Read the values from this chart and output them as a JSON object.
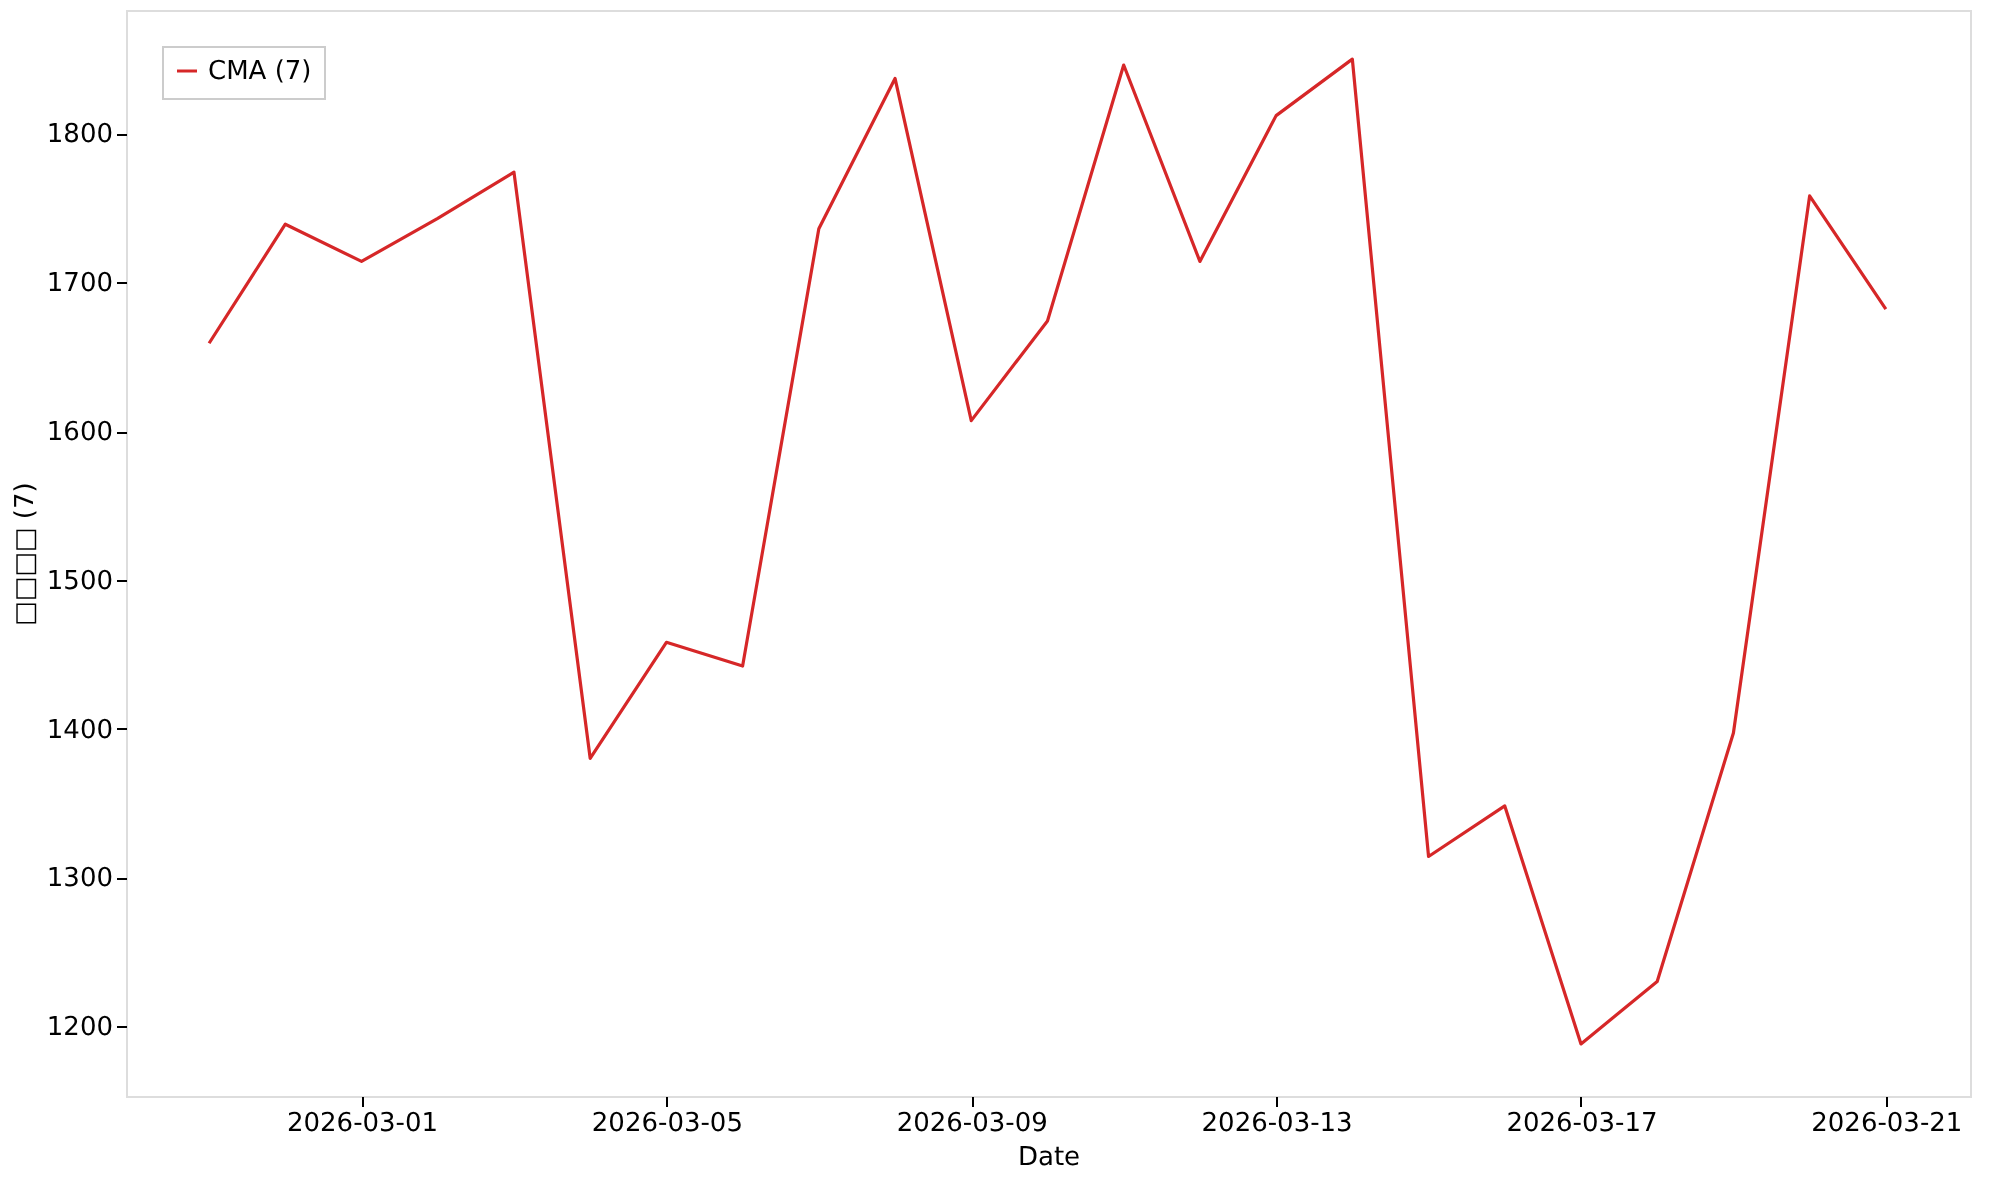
{
  "chart_data": {
    "type": "line",
    "xlabel": "Date",
    "ylabel": "□□□□ (7)",
    "x": [
      "2026-02-27",
      "2026-02-28",
      "2026-03-01",
      "2026-03-02",
      "2026-03-03",
      "2026-03-04",
      "2026-03-05",
      "2026-03-06",
      "2026-03-07",
      "2026-03-08",
      "2026-03-09",
      "2026-03-10",
      "2026-03-11",
      "2026-03-12",
      "2026-03-13",
      "2026-03-14",
      "2026-03-15",
      "2026-03-16",
      "2026-03-17",
      "2026-03-18",
      "2026-03-19",
      "2026-03-20",
      "2026-03-21"
    ],
    "series": [
      {
        "name": "CMA (7)",
        "color": "#d62728",
        "values": [
          1659,
          1739,
          1714,
          1743,
          1774,
          1380,
          1458,
          1442,
          1736,
          1837,
          1607,
          1674,
          1846,
          1714,
          1812,
          1850,
          1314,
          1348,
          1188,
          1230,
          1397,
          1758,
          1682
        ]
      }
    ],
    "xlim": [
      "2026-02-25T21:50",
      "2026-03-22T02:30"
    ],
    "xticks": [
      {
        "value": "2026-03-01",
        "label": "2026-03-01"
      },
      {
        "value": "2026-03-05",
        "label": "2026-03-05"
      },
      {
        "value": "2026-03-09",
        "label": "2026-03-09"
      },
      {
        "value": "2026-03-13",
        "label": "2026-03-13"
      },
      {
        "value": "2026-03-17",
        "label": "2026-03-17"
      },
      {
        "value": "2026-03-21",
        "label": "2026-03-21"
      }
    ],
    "ylim": [
      1153,
      1883
    ],
    "yticks": [
      1200,
      1300,
      1400,
      1500,
      1600,
      1700,
      1800
    ],
    "grid": false,
    "legend": "top left",
    "marker": "none",
    "line_style": "solid"
  }
}
